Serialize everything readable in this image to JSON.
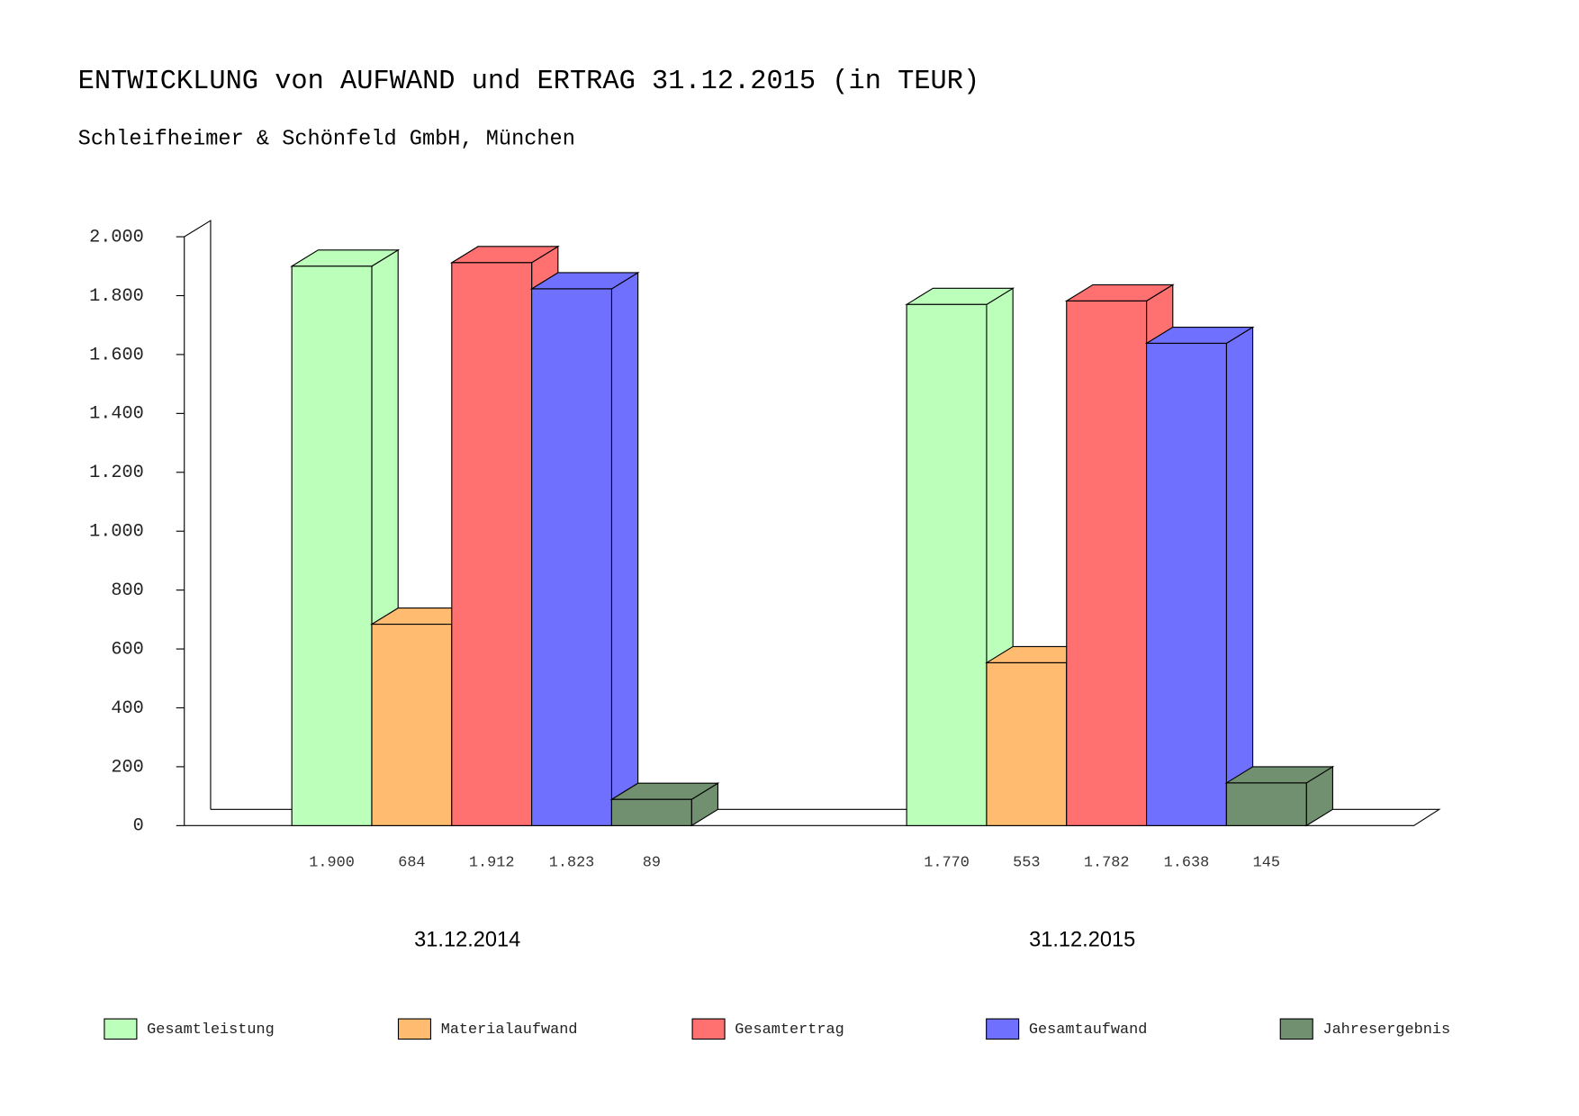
{
  "chart_data": {
    "type": "bar3d",
    "title": "ENTWICKLUNG von AUFWAND und ERTRAG 31.12.2015 (in TEUR)",
    "subtitle": "Schleifheimer & Schönfeld GmbH, München",
    "categories": [
      "31.12.2014",
      "31.12.2015"
    ],
    "series": [
      {
        "name": "Gesamtleistung",
        "color": "#bbffbb",
        "values": [
          1900,
          1770
        ],
        "value_labels": [
          "1.900",
          "1.770"
        ]
      },
      {
        "name": "Materialaufwand",
        "color": "#ffbb70",
        "values": [
          684,
          553
        ],
        "value_labels": [
          "684",
          "553"
        ]
      },
      {
        "name": "Gesamtertrag",
        "color": "#ff7070",
        "values": [
          1912,
          1782
        ],
        "value_labels": [
          "1.912",
          "1.782"
        ]
      },
      {
        "name": "Gesamtaufwand",
        "color": "#7070ff",
        "values": [
          1823,
          1638
        ],
        "value_labels": [
          "1.823",
          "1.638"
        ]
      },
      {
        "name": "Jahresergebnis",
        "color": "#709070",
        "values": [
          89,
          145
        ],
        "value_labels": [
          "89",
          "145"
        ]
      }
    ],
    "ylim": [
      0,
      2000
    ],
    "yticks": [
      0,
      200,
      400,
      600,
      800,
      {
        "value": 1000,
        "label": "1.000"
      },
      {
        "value": 1200,
        "label": "1.200"
      },
      {
        "value": 1400,
        "label": "1.400"
      },
      {
        "value": 1600,
        "label": "1.600"
      },
      {
        "value": 1800,
        "label": "1.800"
      },
      {
        "value": 2000,
        "label": "2.000"
      }
    ],
    "legend": "bottom"
  }
}
